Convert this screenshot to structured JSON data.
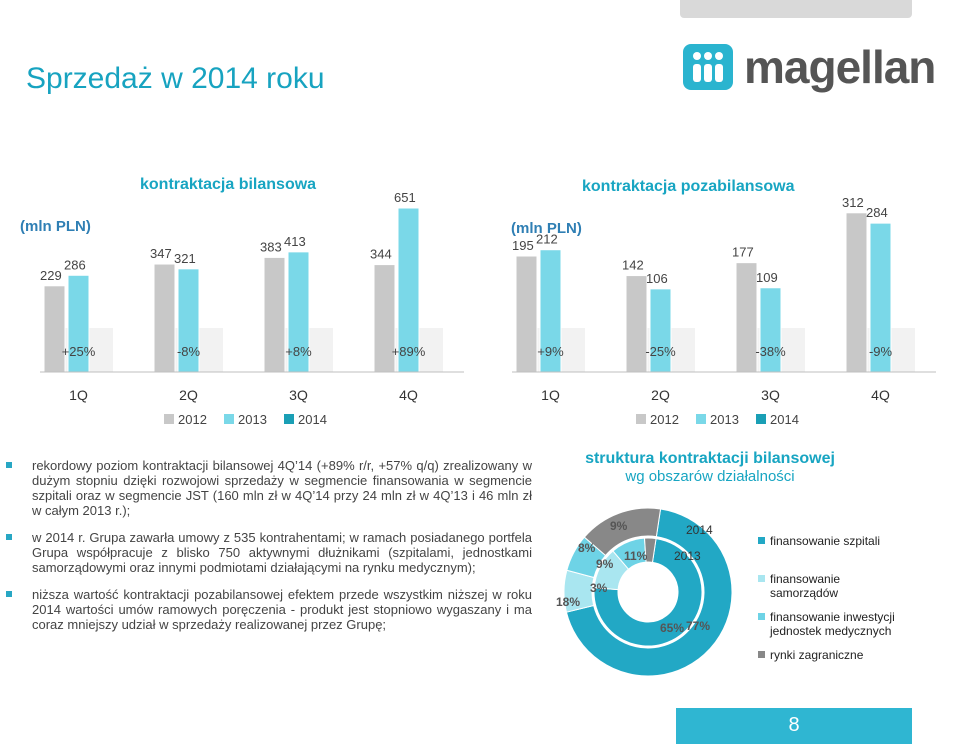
{
  "page": {
    "title": "Sprzedaż w 2014 roku",
    "logo_text": "magellan",
    "page_number": "8"
  },
  "chart_data": [
    {
      "type": "bar",
      "title": "kontraktacja bilansowa",
      "unit_label": "(mln PLN)",
      "categories": [
        "1Q",
        "2Q",
        "3Q",
        "4Q"
      ],
      "series": [
        {
          "name": "2012",
          "values": [
            229,
            347,
            383,
            344
          ],
          "color": "#c8c8c8"
        },
        {
          "name": "2013",
          "values": [
            286,
            321,
            413,
            651
          ],
          "color": "#7ad8e8"
        },
        {
          "name": "2014",
          "values": [
            null,
            null,
            null,
            null
          ],
          "color": "#1a9fb5"
        }
      ],
      "changes": [
        "+25%",
        "-8%",
        "+8%",
        "+89%"
      ]
    },
    {
      "type": "bar",
      "title": "kontraktacja pozabilansowa",
      "unit_label": "(mln PLN)",
      "categories": [
        "1Q",
        "2Q",
        "3Q",
        "4Q"
      ],
      "series": [
        {
          "name": "2012",
          "values": [
            195,
            142,
            177,
            312
          ],
          "color": "#c8c8c8"
        },
        {
          "name": "2013",
          "values": [
            212,
            106,
            109,
            284
          ],
          "color": "#7ad8e8"
        },
        {
          "name": "2014",
          "values": [
            null,
            null,
            null,
            null
          ],
          "color": "#1a9fb5"
        }
      ],
      "changes": [
        "+9%",
        "-25%",
        "-38%",
        "-9%"
      ]
    },
    {
      "type": "pie",
      "title": "struktura kontraktacji bilansowej",
      "subtitle": "wg obszarów działalności",
      "rings": [
        {
          "name": "2014",
          "values": [
            77,
            9,
            8,
            18
          ]
        },
        {
          "name": "2013",
          "values": [
            65,
            11,
            9,
            3
          ]
        }
      ],
      "segments": [
        {
          "name": "finansowanie szpitali",
          "color": "#22a8c5"
        },
        {
          "name": "finansowanie samorządów",
          "color": "#a9e6f0"
        },
        {
          "name": "finansowanie inwestycji jednostek medycznych",
          "color": "#6ed3e6"
        },
        {
          "name": "rynki zagraniczne",
          "color": "#888888"
        }
      ],
      "labels": {
        "outer": [
          "77%",
          "9%",
          "8%",
          "18%"
        ],
        "inner": [
          "65%",
          "11%",
          "9%",
          "3%"
        ]
      }
    }
  ],
  "bullets": [
    "rekordowy poziom kontraktacji bilansowej 4Q’14 (+89% r/r, +57% q/q) zrealizowany w dużym stopniu dzięki rozwojowi sprzedaży w segmencie finansowania w segmencie szpitali oraz w segmencie JST (160 mln zł w 4Q’14 przy 24 mln zł w 4Q’13 i 46 mln zł w całym 2013 r.);",
    "w 2014 r. Grupa zawarła umowy z 535 kontrahentami; w ramach posiadanego portfela Grupa współpracuje z blisko 750 aktywnymi dłużnikami (szpitalami, jednostkami samorządowymi oraz innymi podmiotami działającymi na rynku medycznym);",
    "niższa wartość kontraktacji pozabilansowej efektem przede wszystkim niższej w roku 2014 wartości umów ramowych poręczenia - produkt jest stopniowo wygaszany i ma coraz mniejszy udział w sprzedaży realizowanej przez Grupę;"
  ],
  "colors": {
    "accent": "#18a5c2",
    "gray": "#c8c8c8",
    "light": "#7ad8e8",
    "dark": "#1a9fb5"
  }
}
